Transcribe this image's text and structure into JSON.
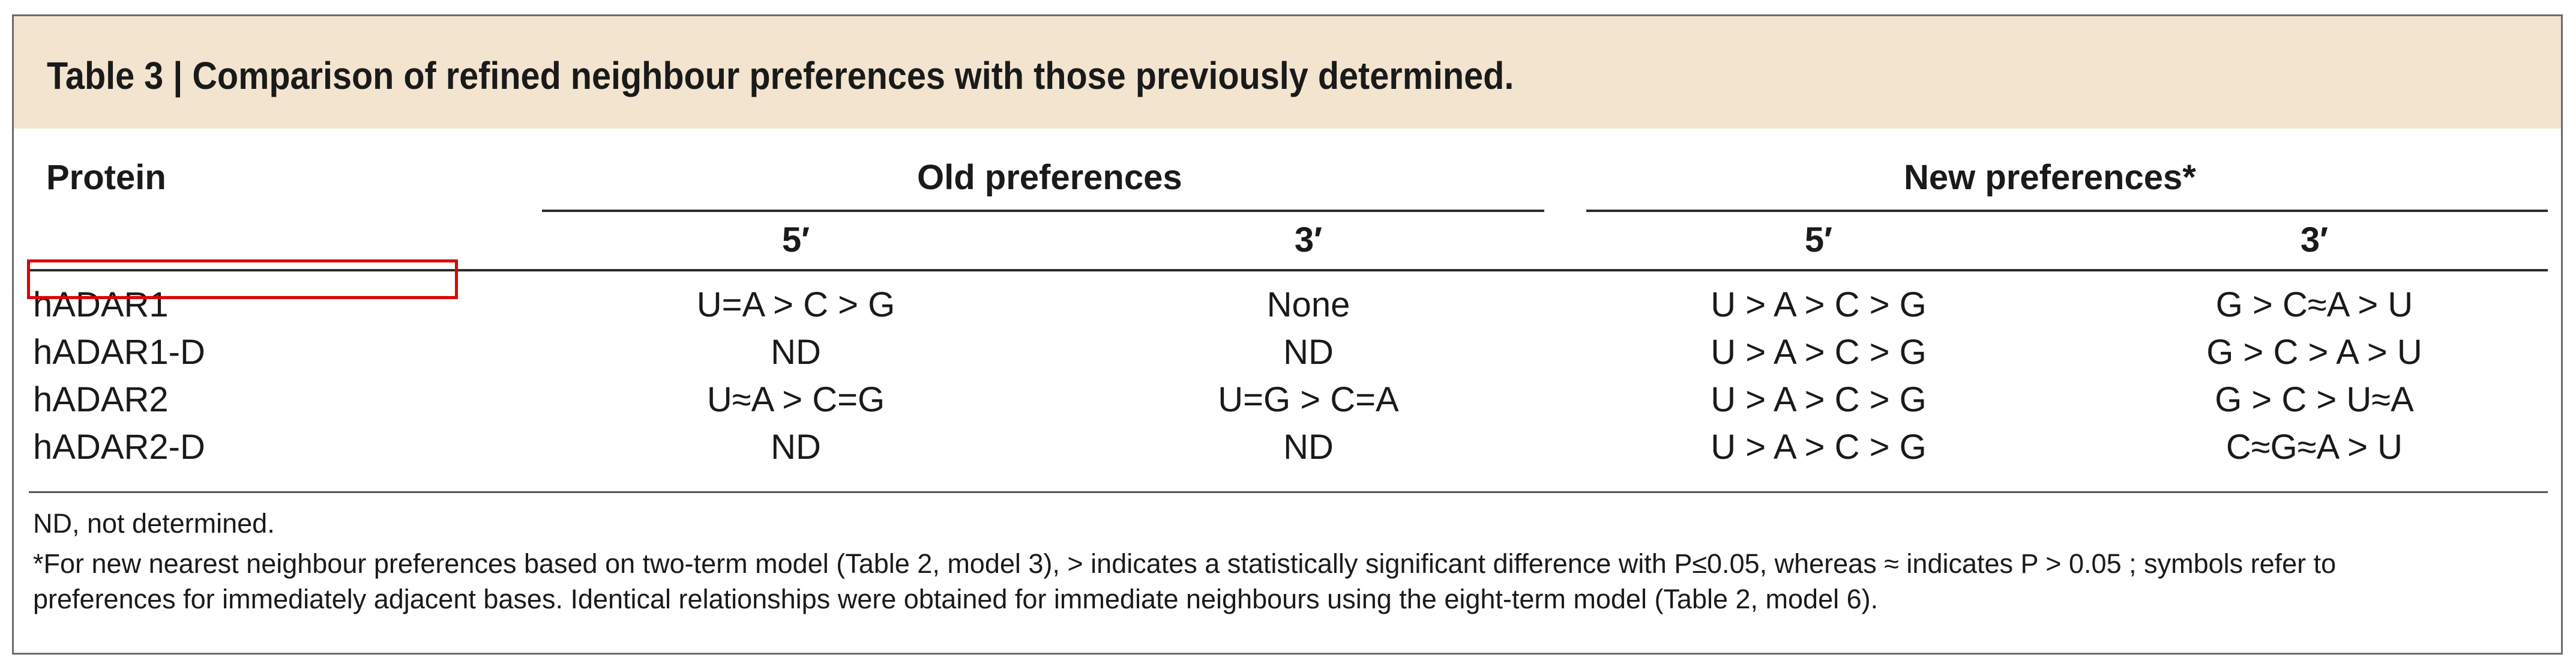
{
  "title": "Table 3 | Comparison of refined neighbour preferences with those previously determined.",
  "headers": {
    "protein": "Protein",
    "old": "Old preferences",
    "new": "New preferences*",
    "five_prime": "5′",
    "three_prime": "3′"
  },
  "rows": [
    {
      "protein": "hADAR1",
      "old5": "U=A > C > G",
      "old3": "None",
      "new5": "U > A > C > G",
      "new3": "G > C≈A > U"
    },
    {
      "protein": "hADAR1-D",
      "old5": "ND",
      "old3": "ND",
      "new5": "U > A > C > G",
      "new3": "G > C > A > U"
    },
    {
      "protein": "hADAR2",
      "old5": "U≈A > C=G",
      "old3": "U=G > C=A",
      "new5": "U > A > C > G",
      "new3": "G > C > U≈A"
    },
    {
      "protein": "hADAR2-D",
      "old5": "ND",
      "old3": "ND",
      "new5": "U > A > C > G",
      "new3": "C≈G≈A > U"
    }
  ],
  "footnotes": {
    "nd": "ND, not determined.",
    "star_line1": "*For new nearest neighbour preferences based on two-term model (Table 2, model 3), > indicates a statistically significant difference with P≤0.05, whereas ≈ indicates P > 0.05 ; symbols refer to",
    "star_line2": "preferences for immediately adjacent bases. Identical relationships were obtained for immediate neighbours using the eight-term model (Table 2, model 6)."
  },
  "colors": {
    "title_background": "#f2e4cf",
    "highlight_box": "#e00000"
  }
}
